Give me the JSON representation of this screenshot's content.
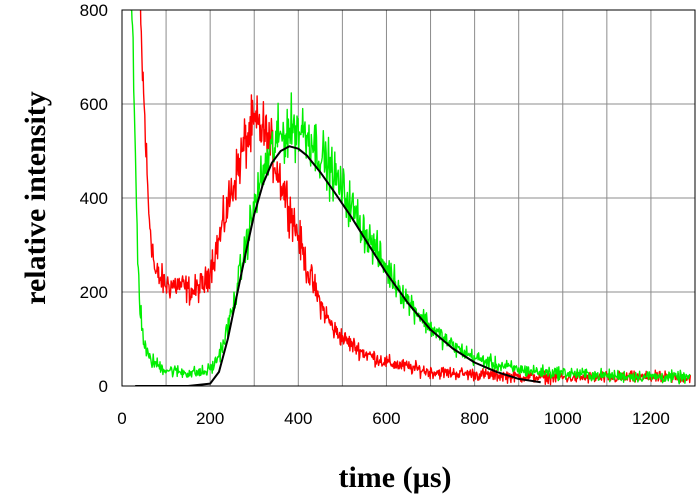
{
  "chart_data": {
    "type": "line",
    "title": "",
    "xlabel": "time (µs)",
    "ylabel": "relative intensity",
    "xlim": [
      0,
      1300
    ],
    "ylim": [
      0,
      800
    ],
    "x_ticks": [
      0,
      200,
      400,
      600,
      800,
      1000,
      1200
    ],
    "y_ticks": [
      0,
      200,
      400,
      600,
      800
    ],
    "x_tick_labels": [
      "0",
      "200",
      "400",
      "600",
      "800",
      "1000",
      "1200"
    ],
    "y_tick_labels": [
      "0",
      "200",
      "400",
      "600",
      "800"
    ],
    "grid": true,
    "legend": "none",
    "series": [
      {
        "color": "#ff0000",
        "style": "noisy",
        "x": [
          40,
          50,
          60,
          75,
          100,
          130,
          160,
          190,
          220,
          250,
          280,
          300,
          320,
          340,
          360,
          380,
          400,
          420,
          450,
          480,
          510,
          550,
          600,
          650,
          700,
          800,
          900,
          1000,
          1100,
          1200,
          1290
        ],
        "y": [
          800,
          600,
          380,
          240,
          215,
          215,
          200,
          220,
          310,
          420,
          520,
          555,
          545,
          500,
          440,
          380,
          320,
          250,
          175,
          120,
          95,
          70,
          50,
          40,
          30,
          25,
          20,
          18,
          18,
          18,
          18
        ]
      },
      {
        "color": "#00ee00",
        "style": "noisy",
        "x": [
          20,
          25,
          30,
          35,
          40,
          50,
          60,
          80,
          100,
          130,
          160,
          190,
          210,
          230,
          250,
          270,
          290,
          310,
          330,
          350,
          370,
          390,
          410,
          430,
          450,
          480,
          510,
          550,
          600,
          650,
          700,
          750,
          800,
          850,
          900,
          950,
          1000,
          1100,
          1200,
          1290
        ],
        "y": [
          800,
          700,
          500,
          300,
          180,
          90,
          60,
          45,
          35,
          30,
          28,
          30,
          45,
          90,
          160,
          250,
          340,
          420,
          480,
          520,
          540,
          550,
          545,
          525,
          495,
          450,
          400,
          330,
          250,
          180,
          125,
          85,
          60,
          45,
          35,
          30,
          28,
          22,
          20,
          18
        ]
      },
      {
        "color": "#000000",
        "style": "smooth",
        "x": [
          30,
          100,
          150,
          200,
          220,
          240,
          260,
          280,
          300,
          320,
          340,
          360,
          380,
          400,
          420,
          450,
          480,
          520,
          560,
          600,
          650,
          700,
          750,
          800,
          850,
          900,
          950
        ],
        "y": [
          0,
          0,
          0,
          5,
          30,
          100,
          190,
          280,
          365,
          430,
          475,
          500,
          510,
          505,
          490,
          455,
          415,
          360,
          300,
          240,
          175,
          120,
          80,
          50,
          30,
          15,
          8
        ]
      }
    ]
  }
}
